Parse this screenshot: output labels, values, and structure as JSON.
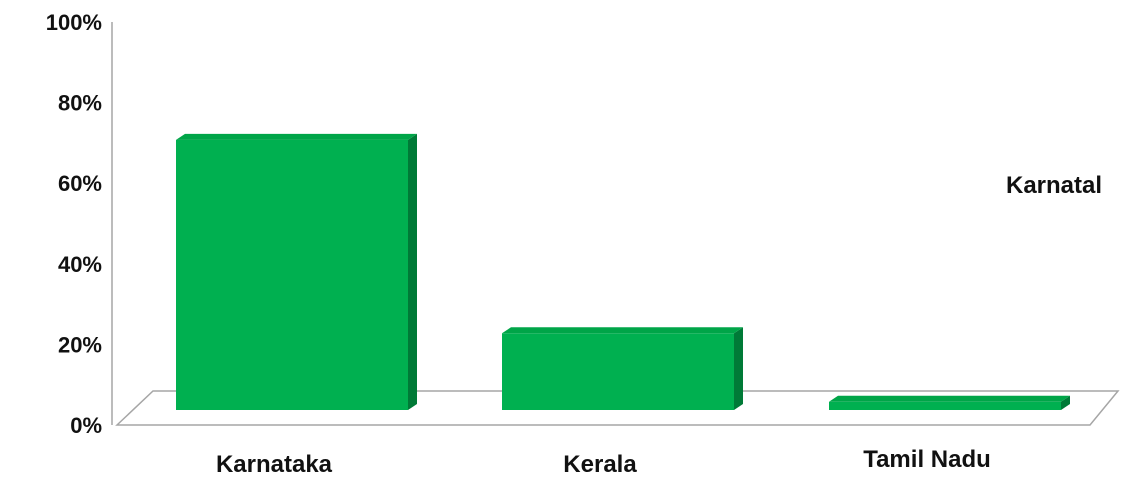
{
  "chart_data": {
    "type": "bar",
    "categories": [
      "Karnataka",
      "Kerala",
      "Tamil Nadu"
    ],
    "values": [
      72,
      24,
      7
    ],
    "ylim": [
      0,
      100
    ],
    "yticks": [
      0,
      20,
      40,
      60,
      80,
      100
    ],
    "ytick_labels": [
      "0%",
      "20%",
      "40%",
      "60%",
      "80%",
      "100%"
    ],
    "grid": false,
    "legend": {
      "placement": "right",
      "entries": [
        "Karnatal"
      ]
    },
    "colors": {
      "bar_front": "#00b050",
      "bar_side": "#007a37",
      "bar_top": "#00a548",
      "axis": "#a6a6a6"
    }
  }
}
